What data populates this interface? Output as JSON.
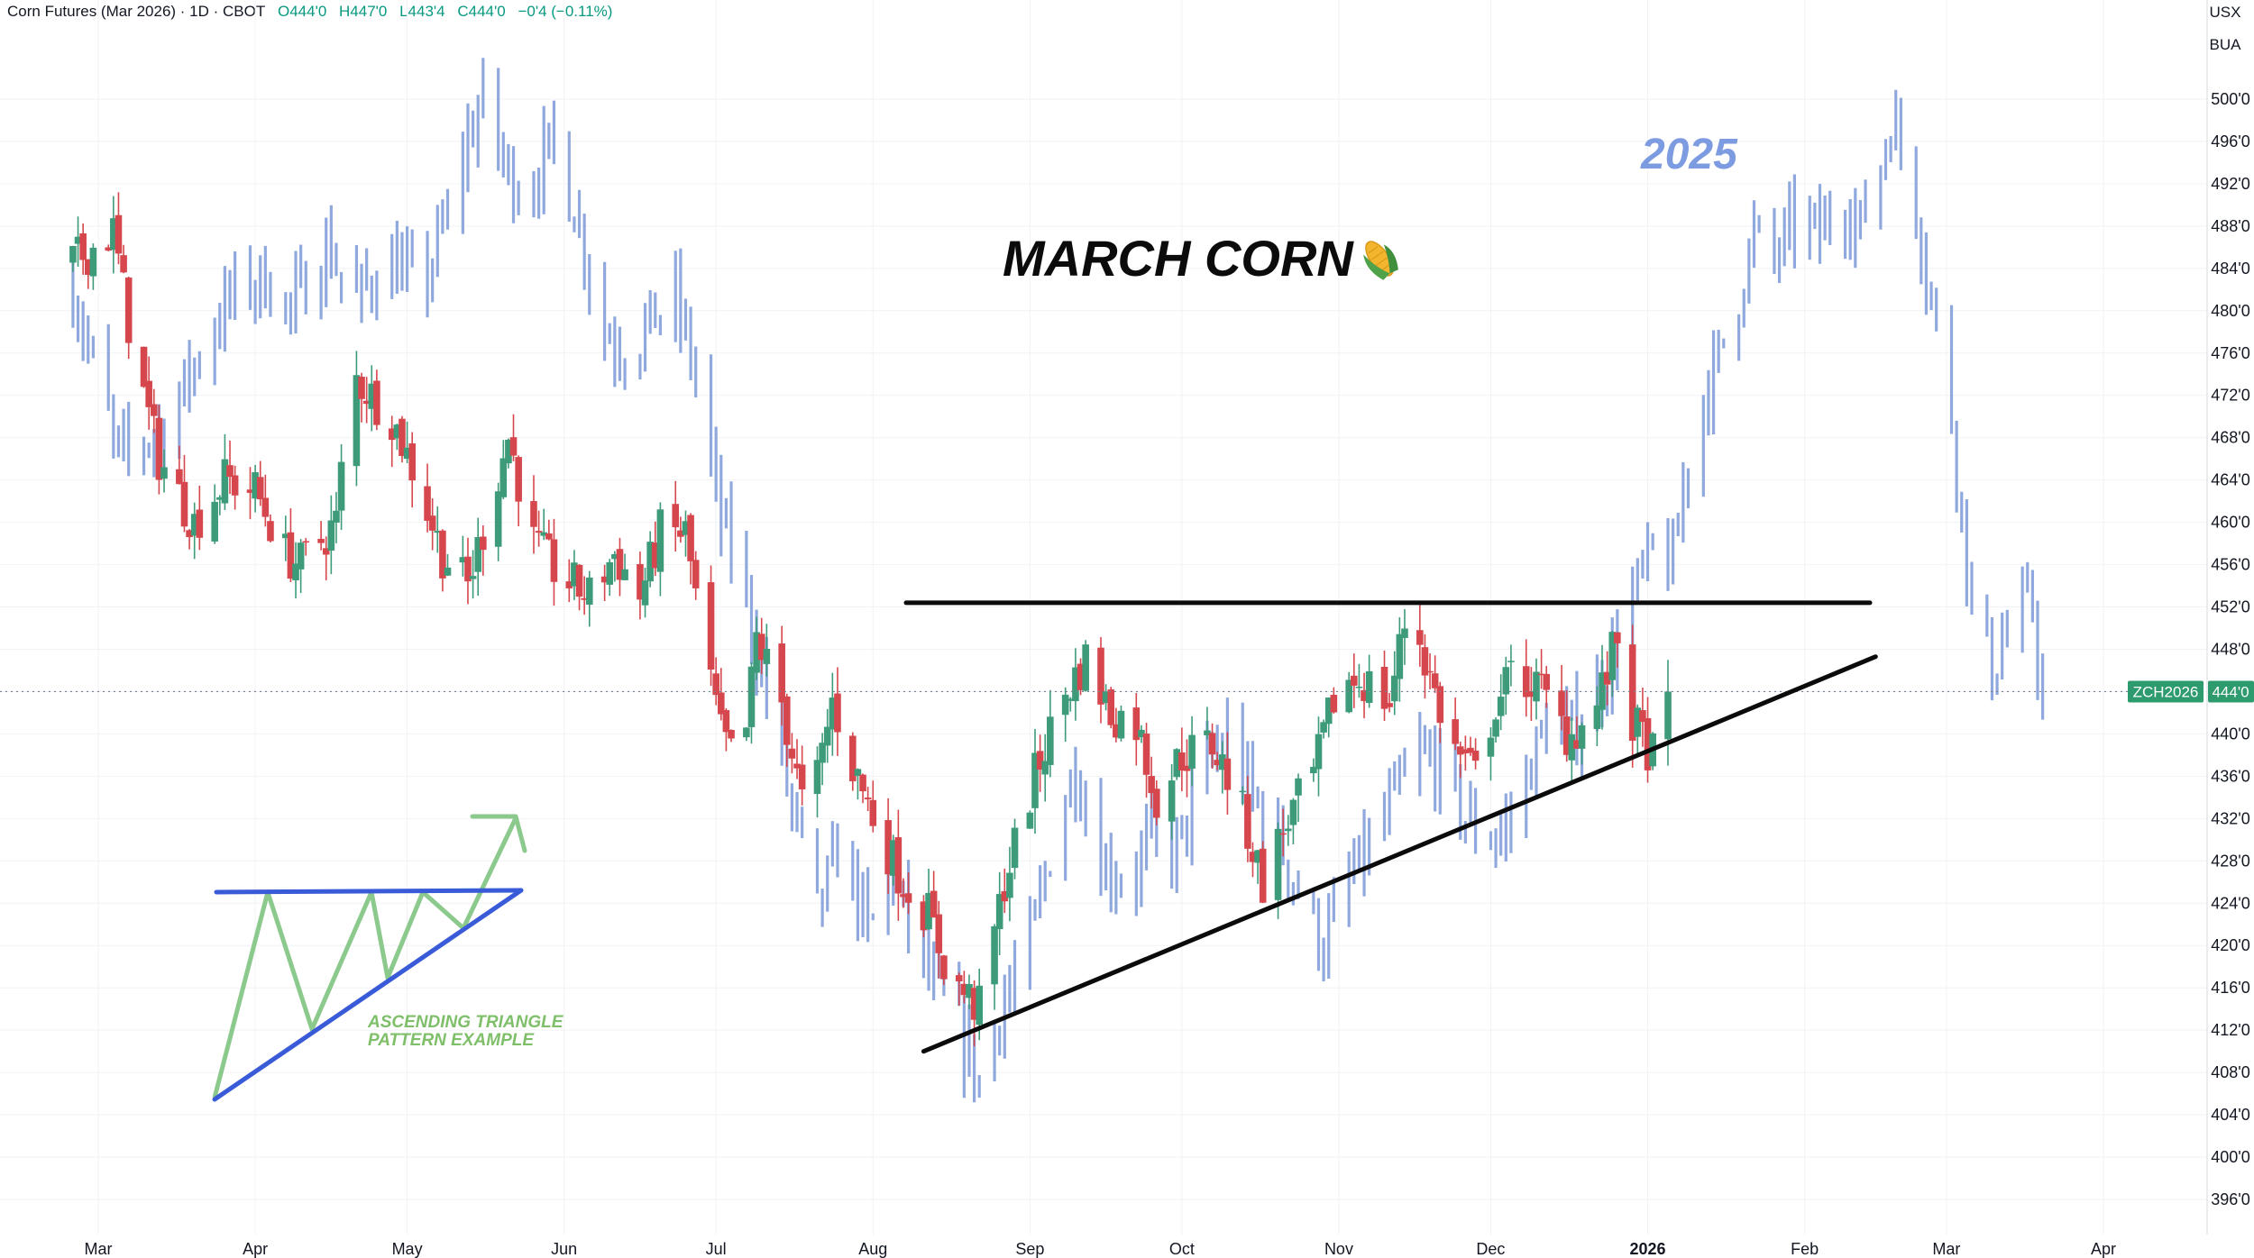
{
  "header": {
    "symbol": "Corn Futures (Mar 2026) · 1D · CBOT",
    "open": "O444'0",
    "high": "H447'0",
    "low": "L443'4",
    "close": "C444'0",
    "change": "−0'4 (−0.11%)"
  },
  "currency": {
    "line1": "USX",
    "line2": "BUA"
  },
  "colors": {
    "up": "#3d9b7a",
    "down": "#d6474d",
    "prior_year": "#8fa8de",
    "trendline": "#0b0b0b",
    "example_triangle": "#3a5bd8",
    "example_path": "#8cc98c",
    "price_tag": "#2e9b6e"
  },
  "chart_data": {
    "type": "candlestick",
    "y_axis": {
      "min": 394,
      "max": 504,
      "ticks": [
        "396'0",
        "400'0",
        "404'0",
        "408'0",
        "412'0",
        "416'0",
        "420'0",
        "424'0",
        "428'0",
        "432'0",
        "436'0",
        "440'0",
        "444'0",
        "448'0",
        "452'0",
        "456'0",
        "460'0",
        "464'0",
        "468'0",
        "472'0",
        "476'0",
        "480'0",
        "484'0",
        "488'0",
        "492'0",
        "496'0",
        "500'0"
      ]
    },
    "x_axis": {
      "labels": [
        "Mar",
        "Apr",
        "May",
        "Jun",
        "Jul",
        "Aug",
        "Sep",
        "Oct",
        "Nov",
        "Dec",
        "2026",
        "Feb",
        "Mar",
        "Apr"
      ],
      "bold": [
        false,
        false,
        false,
        false,
        false,
        false,
        false,
        false,
        false,
        false,
        true,
        false,
        false,
        false
      ],
      "dates": [
        "2025-03-01",
        "2025-04-01",
        "2025-05-01",
        "2025-06-01",
        "2025-07-01",
        "2025-08-01",
        "2025-09-01",
        "2025-10-01",
        "2025-11-01",
        "2025-12-01",
        "2026-01-01",
        "2026-02-01",
        "2026-03-01",
        "2026-04-01"
      ]
    },
    "current_price": {
      "symbol": "ZCH2026",
      "value": "444'0",
      "numeric": 444.0
    },
    "series": [
      {
        "name": "Mar 2026 Corn (daily candles)",
        "anchors": [
          [
            "2025-02-24",
            484.5
          ],
          [
            "2025-03-04",
            487.5
          ],
          [
            "2025-03-08",
            476
          ],
          [
            "2025-03-13",
            466
          ],
          [
            "2025-03-20",
            460
          ],
          [
            "2025-03-26",
            464
          ],
          [
            "2025-04-01",
            463
          ],
          [
            "2025-04-07",
            457
          ],
          [
            "2025-04-10",
            456
          ],
          [
            "2025-04-17",
            460
          ],
          [
            "2025-04-20",
            474
          ],
          [
            "2025-04-28",
            470
          ],
          [
            "2025-05-03",
            464
          ],
          [
            "2025-05-08",
            457
          ],
          [
            "2025-05-13",
            454
          ],
          [
            "2025-05-17",
            461
          ],
          [
            "2025-05-21",
            468
          ],
          [
            "2025-05-26",
            458
          ],
          [
            "2025-05-31",
            455
          ],
          [
            "2025-06-06",
            453
          ],
          [
            "2025-06-11",
            457
          ],
          [
            "2025-06-16",
            453
          ],
          [
            "2025-06-20",
            459
          ],
          [
            "2025-06-25",
            459
          ],
          [
            "2025-06-29",
            447
          ],
          [
            "2025-07-02",
            440
          ],
          [
            "2025-07-06",
            436
          ],
          [
            "2025-07-09",
            449
          ],
          [
            "2025-07-14",
            443
          ],
          [
            "2025-07-19",
            431
          ],
          [
            "2025-07-24",
            443
          ],
          [
            "2025-07-28",
            437
          ],
          [
            "2025-08-02",
            431
          ],
          [
            "2025-08-07",
            426
          ],
          [
            "2025-08-12",
            423
          ],
          [
            "2025-08-16",
            417
          ],
          [
            "2025-08-22",
            414
          ],
          [
            "2025-08-27",
            426
          ],
          [
            "2025-09-02",
            436
          ],
          [
            "2025-09-07",
            443
          ],
          [
            "2025-09-12",
            447
          ],
          [
            "2025-09-17",
            442
          ],
          [
            "2025-09-22",
            441
          ],
          [
            "2025-09-26",
            434
          ],
          [
            "2025-10-01",
            438
          ],
          [
            "2025-10-07",
            439
          ],
          [
            "2025-10-12",
            434
          ],
          [
            "2025-10-17",
            426
          ],
          [
            "2025-10-22",
            432
          ],
          [
            "2025-10-27",
            436
          ],
          [
            "2025-11-01",
            445
          ],
          [
            "2025-11-06",
            445
          ],
          [
            "2025-11-11",
            443
          ],
          [
            "2025-11-15",
            453
          ],
          [
            "2025-11-18",
            447
          ],
          [
            "2025-11-23",
            439
          ],
          [
            "2025-11-28",
            436
          ],
          [
            "2025-12-02",
            443
          ],
          [
            "2025-12-06",
            446
          ],
          [
            "2025-12-11",
            444
          ],
          [
            "2025-12-16",
            440
          ],
          [
            "2025-12-21",
            441
          ],
          [
            "2025-12-26",
            449
          ],
          [
            "2025-12-29",
            441
          ],
          [
            "2026-01-02",
            438
          ],
          [
            "2026-01-05",
            444
          ]
        ]
      },
      {
        "name": "2025",
        "anchors": [
          [
            "2025-02-24",
            482
          ],
          [
            "2025-03-05",
            466
          ],
          [
            "2025-03-14",
            469
          ],
          [
            "2025-03-22",
            477
          ],
          [
            "2025-03-28",
            482
          ],
          [
            "2025-04-03",
            483
          ],
          [
            "2025-04-08",
            480
          ],
          [
            "2025-04-15",
            486
          ],
          [
            "2025-04-21",
            481
          ],
          [
            "2025-04-27",
            485
          ],
          [
            "2025-05-04",
            482
          ],
          [
            "2025-05-09",
            489
          ],
          [
            "2025-05-12",
            495
          ],
          [
            "2025-05-16",
            500
          ],
          [
            "2025-05-20",
            494
          ],
          [
            "2025-05-24",
            491
          ],
          [
            "2025-05-30",
            496
          ],
          [
            "2025-06-04",
            488
          ],
          [
            "2025-06-09",
            478
          ],
          [
            "2025-06-14",
            476
          ],
          [
            "2025-06-18",
            479
          ],
          [
            "2025-06-23",
            481
          ],
          [
            "2025-06-27",
            474
          ],
          [
            "2025-07-02",
            460
          ],
          [
            "2025-07-07",
            453
          ],
          [
            "2025-07-12",
            441
          ],
          [
            "2025-07-16",
            433
          ],
          [
            "2025-07-21",
            423
          ],
          [
            "2025-07-26",
            430
          ],
          [
            "2025-07-31",
            421
          ],
          [
            "2025-08-05",
            427
          ],
          [
            "2025-08-09",
            420
          ],
          [
            "2025-08-13",
            416
          ],
          [
            "2025-08-18",
            412
          ],
          [
            "2025-08-22",
            407
          ],
          [
            "2025-08-26",
            414
          ],
          [
            "2025-09-01",
            420
          ],
          [
            "2025-09-06",
            431
          ],
          [
            "2025-09-10",
            437
          ],
          [
            "2025-09-15",
            428
          ],
          [
            "2025-09-20",
            426
          ],
          [
            "2025-09-25",
            430
          ],
          [
            "2025-09-30",
            429
          ],
          [
            "2025-10-05",
            436
          ],
          [
            "2025-10-10",
            440
          ],
          [
            "2025-10-15",
            434
          ],
          [
            "2025-10-20",
            430
          ],
          [
            "2025-10-25",
            424
          ],
          [
            "2025-10-29",
            420
          ],
          [
            "2025-11-03",
            426
          ],
          [
            "2025-11-08",
            430
          ],
          [
            "2025-11-12",
            434
          ],
          [
            "2025-11-17",
            438
          ],
          [
            "2025-11-21",
            437
          ],
          [
            "2025-11-26",
            432
          ],
          [
            "2025-11-30",
            430
          ],
          [
            "2025-12-04",
            431
          ],
          [
            "2025-12-08",
            436
          ],
          [
            "2025-12-12",
            441
          ],
          [
            "2025-12-16",
            440
          ],
          [
            "2025-12-20",
            442
          ],
          [
            "2025-12-24",
            446
          ],
          [
            "2025-12-28",
            452
          ],
          [
            "2026-01-02",
            457
          ],
          [
            "2026-01-06",
            456
          ],
          [
            "2026-01-10",
            470
          ],
          [
            "2026-01-14",
            474
          ],
          [
            "2026-01-18",
            480
          ],
          [
            "2026-01-22",
            487
          ],
          [
            "2026-01-26",
            485
          ],
          [
            "2026-01-31",
            489
          ],
          [
            "2026-02-04",
            487
          ],
          [
            "2026-02-08",
            491
          ],
          [
            "2026-02-12",
            488
          ],
          [
            "2026-02-15",
            492
          ],
          [
            "2026-02-18",
            498
          ],
          [
            "2026-02-22",
            493
          ],
          [
            "2026-02-26",
            481
          ],
          [
            "2026-03-02",
            470
          ],
          [
            "2026-03-06",
            452
          ],
          [
            "2026-03-10",
            446
          ],
          [
            "2026-03-14",
            451
          ],
          [
            "2026-03-18",
            452
          ],
          [
            "2026-03-20",
            443
          ]
        ]
      }
    ],
    "annotations": {
      "title": "MARCH CORN",
      "year_label": "2025",
      "example_label_line1": "ASCENDING TRIANGLE",
      "example_label_line2": "PATTERN EXAMPLE",
      "resistance_price": 452.4,
      "support_from": [
        "2025-08-11",
        410
      ],
      "support_to": [
        "2026-02-15",
        447.3
      ]
    }
  }
}
